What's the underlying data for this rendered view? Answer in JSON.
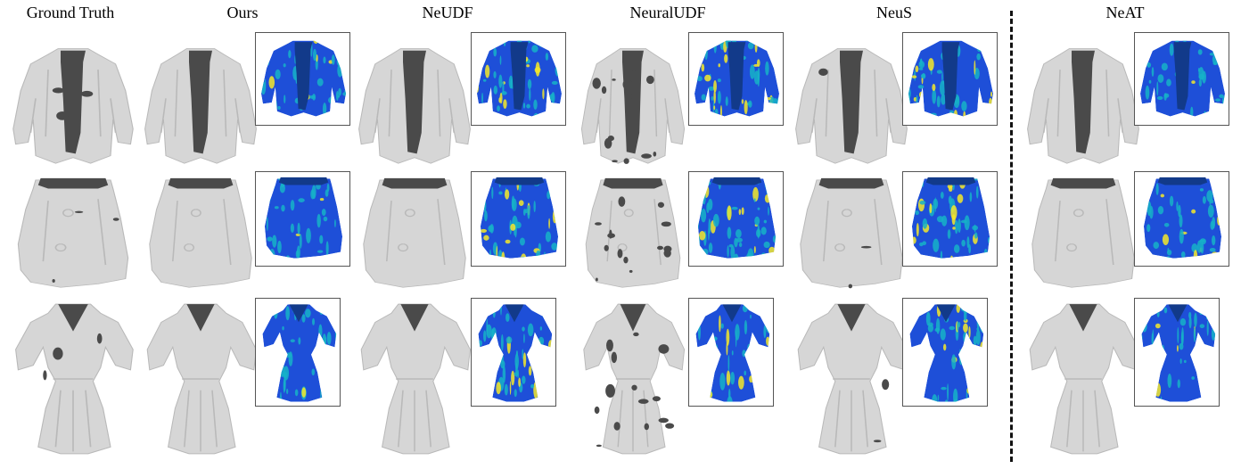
{
  "columns": [
    {
      "label": "Ground Truth"
    },
    {
      "label": "Ours"
    },
    {
      "label": "NeUDF"
    },
    {
      "label": "NeuralUDF"
    },
    {
      "label": "NeuS"
    },
    {
      "label": "NeAT"
    }
  ],
  "rows": [
    {
      "garment": "jacket"
    },
    {
      "garment": "skirt"
    },
    {
      "garment": "dress"
    }
  ],
  "colors": {
    "mesh_fill": "#d6d6d6",
    "mesh_shadow": "#b9b9b9",
    "mesh_hole": "#4a4a4a",
    "error_low": "#1e4fd8",
    "error_mid": "#16b2c8",
    "error_high": "#f5e82a"
  }
}
